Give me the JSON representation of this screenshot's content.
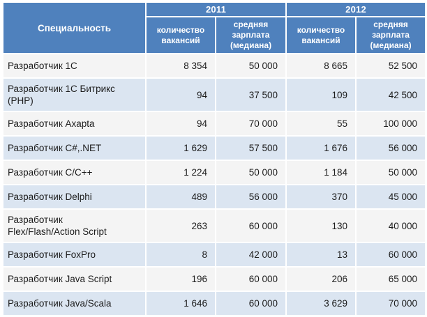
{
  "chart_data": {
    "type": "table",
    "title": "",
    "columns": [
      "Специальность",
      "2011 — количество вакансий",
      "2011 — средняя зарплата (медиана)",
      "2012 — количество вакансий",
      "2012 — средняя зарплата (медиана)"
    ],
    "rows": [
      [
        "Разработчик 1С",
        8354,
        50000,
        8665,
        52500
      ],
      [
        "Разработчик 1С Битрикс (PHP)",
        94,
        37500,
        109,
        42500
      ],
      [
        "Разработчик Axapta",
        94,
        70000,
        55,
        100000
      ],
      [
        "Разработчик C#,.NET",
        1629,
        57500,
        1676,
        56000
      ],
      [
        "Разработчик C/C++",
        1224,
        50000,
        1184,
        50000
      ],
      [
        "Разработчик Delphi",
        489,
        56000,
        370,
        45000
      ],
      [
        "Разработчик Flex/Flash/Action Script",
        263,
        60000,
        130,
        40000
      ],
      [
        "Разработчик FoxPro",
        8,
        42000,
        13,
        60000
      ],
      [
        "Разработчик Java Script",
        196,
        60000,
        206,
        65000
      ],
      [
        "Разработчик Java/Scala",
        1646,
        60000,
        3629,
        70000
      ]
    ]
  },
  "table": {
    "header": {
      "specialty": "Специальность",
      "year_2011": "2011",
      "year_2012": "2012",
      "vacancies_label": "количество вакансий",
      "salary_label": "средняя зарплата (медиана)"
    },
    "rows": [
      {
        "specialty": "Разработчик 1С",
        "v2011": "8 354",
        "s2011": "50 000",
        "v2012": "8 665",
        "s2012": "52 500"
      },
      {
        "specialty": "Разработчик 1С Битрикс (PHP)",
        "v2011": "94",
        "s2011": "37 500",
        "v2012": "109",
        "s2012": "42 500"
      },
      {
        "specialty": "Разработчик Axapta",
        "v2011": "94",
        "s2011": "70 000",
        "v2012": "55",
        "s2012": "100 000"
      },
      {
        "specialty": "Разработчик C#,.NET",
        "v2011": "1 629",
        "s2011": "57 500",
        "v2012": "1 676",
        "s2012": "56 000"
      },
      {
        "specialty": "Разработчик C/C++",
        "v2011": "1 224",
        "s2011": "50 000",
        "v2012": "1 184",
        "s2012": "50 000"
      },
      {
        "specialty": "Разработчик Delphi",
        "v2011": "489",
        "s2011": "56 000",
        "v2012": "370",
        "s2012": "45 000"
      },
      {
        "specialty": "Разработчик Flex/Flash/Action Script",
        "v2011": "263",
        "s2011": "60 000",
        "v2012": "130",
        "s2012": "40 000"
      },
      {
        "specialty": "Разработчик FoxPro",
        "v2011": "8",
        "s2011": "42 000",
        "v2012": "13",
        "s2012": "60 000"
      },
      {
        "specialty": "Разработчик Java Script",
        "v2011": "196",
        "s2011": "60 000",
        "v2012": "206",
        "s2012": "65 000"
      },
      {
        "specialty": "Разработчик Java/Scala",
        "v2011": "1 646",
        "s2011": "60 000",
        "v2012": "3 629",
        "s2012": "70 000"
      }
    ]
  },
  "colors": {
    "header_bg": "#4F81BD",
    "header_text": "#FFFFFF",
    "band_row_bg": "#DBE5F1",
    "plain_row_bg": "#F4F4F4",
    "body_text": "#1C1C1C",
    "grid": "#FFFFFF"
  }
}
